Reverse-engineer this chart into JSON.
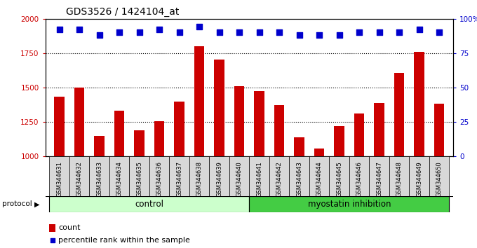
{
  "title": "GDS3526 / 1424104_at",
  "samples": [
    "GSM344631",
    "GSM344632",
    "GSM344633",
    "GSM344634",
    "GSM344635",
    "GSM344636",
    "GSM344637",
    "GSM344638",
    "GSM344639",
    "GSM344640",
    "GSM344641",
    "GSM344642",
    "GSM344643",
    "GSM344644",
    "GSM344645",
    "GSM344646",
    "GSM344647",
    "GSM344648",
    "GSM344649",
    "GSM344650"
  ],
  "counts": [
    1435,
    1500,
    1150,
    1330,
    1190,
    1255,
    1395,
    1800,
    1700,
    1510,
    1475,
    1370,
    1140,
    1055,
    1220,
    1310,
    1385,
    1605,
    1760,
    1380
  ],
  "percentile_ranks": [
    92,
    92,
    88,
    90,
    90,
    92,
    90,
    94,
    90,
    90,
    90,
    90,
    88,
    88,
    88,
    90,
    90,
    90,
    92,
    90
  ],
  "bar_color": "#cc0000",
  "dot_color": "#0000cc",
  "ylim_left": [
    1000,
    2000
  ],
  "ylim_right": [
    0,
    100
  ],
  "yticks_left": [
    1000,
    1250,
    1500,
    1750,
    2000
  ],
  "yticks_right": [
    0,
    25,
    50,
    75,
    100
  ],
  "control_color": "#ccffcc",
  "myostatin_color": "#44cc44",
  "bar_width": 0.5,
  "dot_size": 35,
  "xticklabel_bg": "#d8d8d8"
}
